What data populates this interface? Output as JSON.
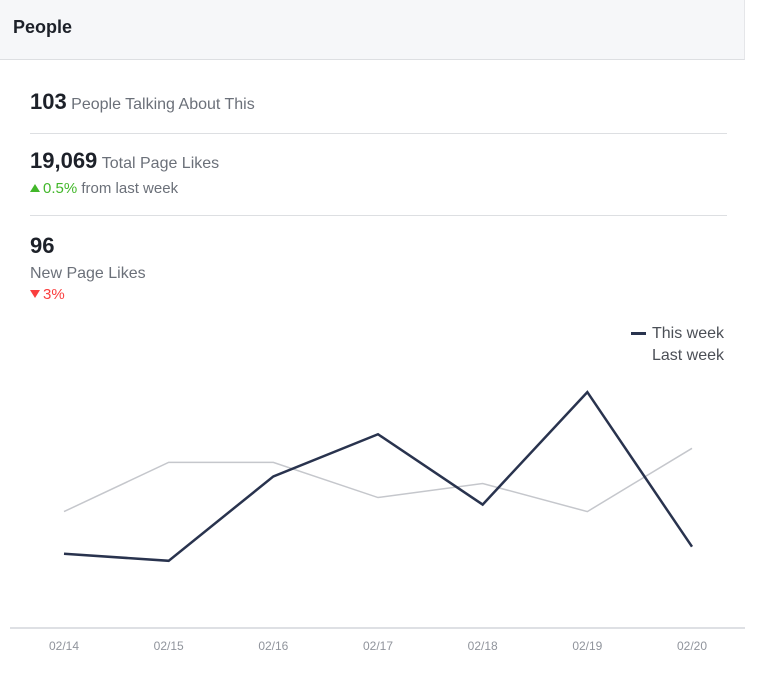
{
  "header": {
    "title": "People"
  },
  "talking": {
    "value": "103",
    "label": "People Talking About This"
  },
  "total_likes": {
    "value": "19,069",
    "label": "Total Page Likes",
    "change": "0.5%",
    "change_suffix": "from last week",
    "direction": "up"
  },
  "new_likes": {
    "value": "96",
    "label": "New Page Likes",
    "change": "3%",
    "direction": "down"
  },
  "colors": {
    "this_week": "#29334e",
    "last_week": "#c5c7cc",
    "positive": "#42b72a",
    "negative": "#fa3e3e"
  },
  "chart_data": {
    "type": "line",
    "categories": [
      "02/14",
      "02/15",
      "02/16",
      "02/17",
      "02/18",
      "02/19",
      "02/20"
    ],
    "series": [
      {
        "name": "This week",
        "values": [
          8,
          7,
          19,
          25,
          15,
          31,
          9
        ]
      },
      {
        "name": "Last week",
        "values": [
          14,
          21,
          21,
          16,
          18,
          14,
          23
        ]
      }
    ],
    "ylim": [
      0,
      34
    ],
    "legend": "top-right",
    "grid": false
  }
}
